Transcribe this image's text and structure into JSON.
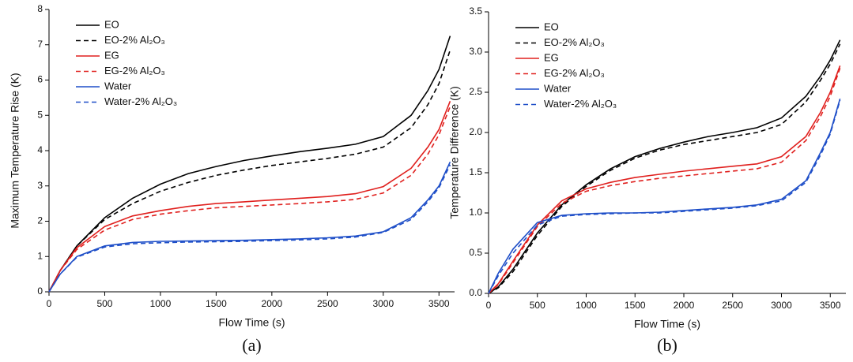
{
  "chart_data": [
    {
      "type": "line",
      "xlabel": "Flow Time (s)",
      "ylabel": "Maximum Temperature Rise (K)",
      "caption": "(a)",
      "x": [
        0,
        100,
        250,
        500,
        750,
        1000,
        1250,
        1500,
        1750,
        2000,
        2250,
        2500,
        2750,
        3000,
        3250,
        3400,
        3500,
        3600
      ],
      "xlim": [
        0,
        3640
      ],
      "xticks": [
        0,
        500,
        1000,
        1500,
        2000,
        2500,
        3000,
        3500
      ],
      "ylim": [
        0,
        8
      ],
      "yticks": [
        0,
        1,
        2,
        3,
        4,
        5,
        6,
        7,
        8
      ],
      "legend": "upper left",
      "series": [
        {
          "name": "EO",
          "color": "#000000",
          "style": "solid",
          "values": [
            0,
            0.6,
            1.3,
            2.1,
            2.65,
            3.05,
            3.35,
            3.55,
            3.72,
            3.85,
            3.97,
            4.07,
            4.18,
            4.4,
            5.0,
            5.7,
            6.3,
            7.25
          ]
        },
        {
          "name": "EO-2% Al₂O₃",
          "color": "#000000",
          "style": "dashed",
          "values": [
            0,
            0.6,
            1.3,
            2.05,
            2.5,
            2.85,
            3.1,
            3.3,
            3.45,
            3.58,
            3.68,
            3.78,
            3.9,
            4.1,
            4.65,
            5.3,
            5.9,
            6.85
          ]
        },
        {
          "name": "EG",
          "color": "#e0201e",
          "style": "solid",
          "values": [
            0,
            0.6,
            1.25,
            1.85,
            2.15,
            2.3,
            2.42,
            2.5,
            2.55,
            2.6,
            2.65,
            2.7,
            2.78,
            2.98,
            3.5,
            4.1,
            4.6,
            5.4
          ]
        },
        {
          "name": "EG-2% Al₂O₃",
          "color": "#e0201e",
          "style": "dashed",
          "values": [
            0,
            0.6,
            1.2,
            1.75,
            2.05,
            2.2,
            2.3,
            2.38,
            2.42,
            2.46,
            2.5,
            2.55,
            2.62,
            2.8,
            3.3,
            3.9,
            4.45,
            5.25
          ]
        },
        {
          "name": "Water",
          "color": "#1f4fc8",
          "style": "solid",
          "values": [
            0,
            0.5,
            1.0,
            1.3,
            1.4,
            1.43,
            1.44,
            1.45,
            1.46,
            1.48,
            1.5,
            1.53,
            1.58,
            1.7,
            2.1,
            2.6,
            3.0,
            3.68
          ]
        },
        {
          "name": "Water-2% Al₂O₃",
          "color": "#1f4fc8",
          "style": "dashed",
          "values": [
            0,
            0.5,
            0.98,
            1.27,
            1.36,
            1.39,
            1.41,
            1.42,
            1.43,
            1.45,
            1.47,
            1.5,
            1.55,
            1.68,
            2.05,
            2.55,
            2.95,
            3.6
          ]
        }
      ]
    },
    {
      "type": "line",
      "xlabel": "Flow Time (s)",
      "ylabel": "Temperature Difference (K)",
      "caption": "(b)",
      "x": [
        0,
        100,
        250,
        500,
        750,
        1000,
        1250,
        1500,
        1750,
        2000,
        2250,
        2500,
        2750,
        3000,
        3250,
        3400,
        3500,
        3600
      ],
      "xlim": [
        0,
        3660
      ],
      "xticks": [
        0,
        500,
        1000,
        1500,
        2000,
        2500,
        3000,
        3500
      ],
      "ylim": [
        0,
        3.5
      ],
      "yticks": [
        {
          "value": 0,
          "label": "0.0"
        },
        0.5,
        {
          "value": 1,
          "label": "1.0"
        },
        1.5,
        {
          "value": 2,
          "label": "2.0"
        },
        2.5,
        {
          "value": 3,
          "label": "3.0"
        },
        3.5
      ],
      "legend": "upper left",
      "series": [
        {
          "name": "EO",
          "color": "#000000",
          "style": "solid",
          "values": [
            0,
            0.08,
            0.3,
            0.75,
            1.1,
            1.35,
            1.55,
            1.7,
            1.8,
            1.88,
            1.95,
            2.0,
            2.06,
            2.18,
            2.45,
            2.7,
            2.9,
            3.15
          ]
        },
        {
          "name": "EO-2% Al₂O₃",
          "color": "#000000",
          "style": "dashed",
          "values": [
            0,
            0.07,
            0.27,
            0.72,
            1.08,
            1.33,
            1.53,
            1.68,
            1.78,
            1.85,
            1.9,
            1.95,
            2.0,
            2.1,
            2.38,
            2.65,
            2.85,
            3.1
          ]
        },
        {
          "name": "EG",
          "color": "#e0201e",
          "style": "solid",
          "values": [
            0,
            0.12,
            0.4,
            0.85,
            1.15,
            1.3,
            1.38,
            1.44,
            1.48,
            1.52,
            1.55,
            1.58,
            1.61,
            1.7,
            1.95,
            2.25,
            2.5,
            2.83
          ]
        },
        {
          "name": "EG-2% Al₂O₃",
          "color": "#e0201e",
          "style": "dashed",
          "values": [
            0,
            0.11,
            0.38,
            0.83,
            1.12,
            1.27,
            1.34,
            1.39,
            1.43,
            1.46,
            1.49,
            1.52,
            1.55,
            1.63,
            1.9,
            2.2,
            2.45,
            2.8
          ]
        },
        {
          "name": "Water",
          "color": "#1f4fc8",
          "style": "solid",
          "values": [
            0,
            0.25,
            0.55,
            0.88,
            0.97,
            0.99,
            1.0,
            1.0,
            1.01,
            1.03,
            1.05,
            1.07,
            1.1,
            1.17,
            1.4,
            1.75,
            2.0,
            2.42
          ]
        },
        {
          "name": "Water-2% Al₂O₃",
          "color": "#1f4fc8",
          "style": "dashed",
          "values": [
            0,
            0.22,
            0.5,
            0.85,
            0.96,
            0.98,
            0.99,
            1.0,
            1.0,
            1.02,
            1.04,
            1.06,
            1.09,
            1.15,
            1.38,
            1.72,
            1.98,
            2.4
          ]
        }
      ]
    }
  ]
}
